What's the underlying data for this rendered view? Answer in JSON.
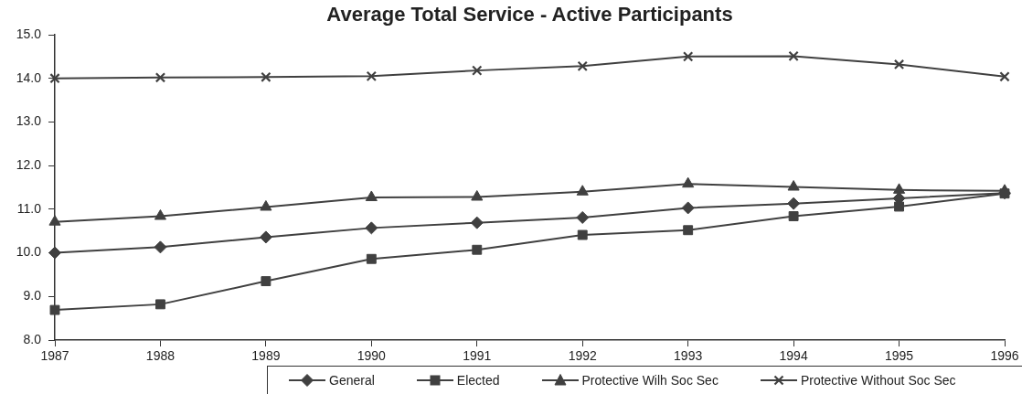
{
  "chart_data": {
    "type": "line",
    "title": "Average Total Service - Active Participants",
    "categories": [
      "1987",
      "1988",
      "1989",
      "1990",
      "1991",
      "1992",
      "1993",
      "1994",
      "1995",
      "1996"
    ],
    "series": [
      {
        "name": "General",
        "color": "#404040",
        "marker": "diamond",
        "values": [
          10.0,
          10.13,
          10.36,
          10.57,
          10.69,
          10.81,
          11.03,
          11.13,
          11.25,
          11.37
        ]
      },
      {
        "name": "Elected",
        "color": "#404040",
        "marker": "square",
        "values": [
          8.69,
          8.82,
          9.35,
          9.86,
          10.07,
          10.41,
          10.52,
          10.84,
          11.06,
          11.36
        ]
      },
      {
        "name": "Protective Wilh Soc Sec",
        "color": "#404040",
        "marker": "triangle",
        "values": [
          10.71,
          10.84,
          11.05,
          11.27,
          11.28,
          11.4,
          11.58,
          11.51,
          11.44,
          11.42
        ]
      },
      {
        "name": "Protective Without Soc Sec",
        "color": "#404040",
        "marker": "cross",
        "values": [
          14.0,
          14.02,
          14.03,
          14.05,
          14.18,
          14.28,
          14.5,
          14.51,
          14.32,
          14.04
        ]
      }
    ],
    "ylim": [
      8,
      15
    ],
    "yticks": [
      {
        "value": 8,
        "label": "8.0"
      },
      {
        "value": 9,
        "label": "9.0"
      },
      {
        "value": 10,
        "label": "10.0"
      },
      {
        "value": 11,
        "label": "11.0"
      },
      {
        "value": 12,
        "label": "12.0"
      },
      {
        "value": 13,
        "label": "13.0"
      },
      {
        "value": 14,
        "label": "14.0"
      },
      {
        "value": 15,
        "label": "15.0"
      }
    ],
    "grid": false,
    "legend": "bottom",
    "line_style": "solid"
  }
}
